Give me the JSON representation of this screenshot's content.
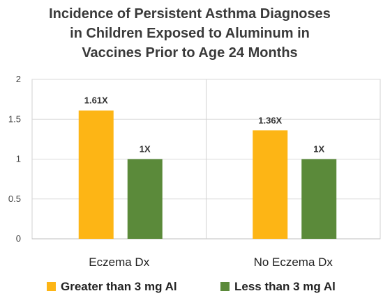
{
  "chart_data": {
    "type": "bar",
    "title_lines": [
      "Incidence of Persistent Asthma Diagnoses",
      "in Children Exposed to Aluminum in",
      "Vaccines Prior to Age 24 Months"
    ],
    "categories": [
      "Eczema Dx",
      "No Eczema Dx"
    ],
    "series": [
      {
        "name": "Greater than 3 mg Al",
        "values": [
          1.61,
          1.36
        ],
        "labels": [
          "1.61X",
          "1.36X"
        ],
        "color": "#FDB515"
      },
      {
        "name": "Less than 3 mg Al",
        "values": [
          1,
          1
        ],
        "labels": [
          "1X",
          "1X"
        ],
        "color": "#5B8A3A"
      }
    ],
    "ylim": [
      0,
      2
    ],
    "yticks": [
      0,
      0.5,
      1,
      1.5,
      2
    ],
    "ytick_labels": [
      "0",
      "0.5",
      "1",
      "1.5",
      "2"
    ],
    "grid": true,
    "legend_position": "bottom",
    "xlabel": "",
    "ylabel": ""
  }
}
